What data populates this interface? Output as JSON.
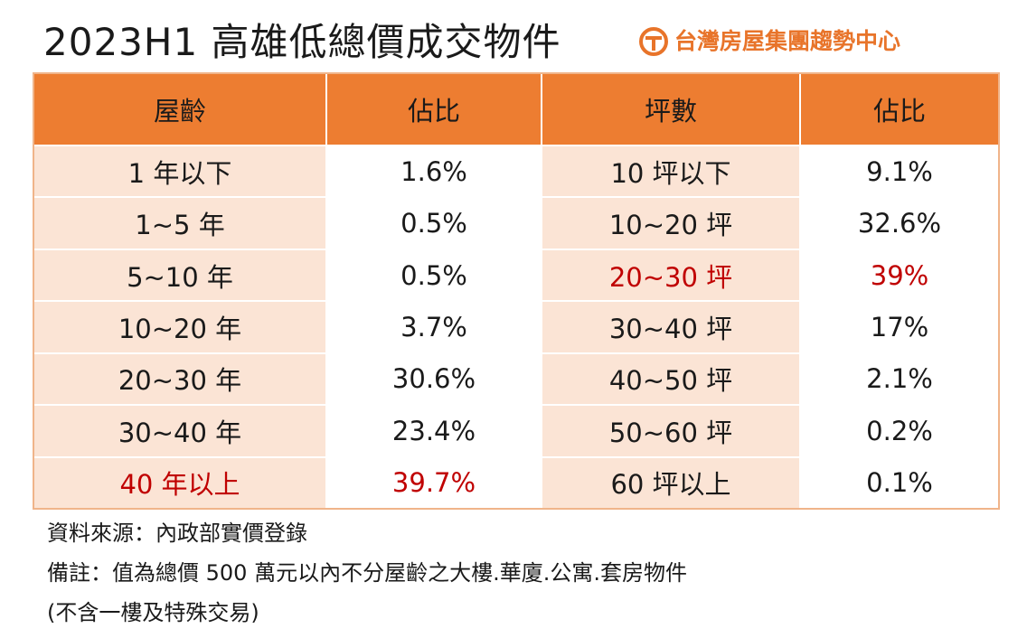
{
  "title": "2023H1 高雄低總價成交物件",
  "brand": {
    "name": "台灣房屋集團趨勢中心",
    "color": "#e8742a",
    "icon": "taiwan-realty-logo-icon"
  },
  "colors": {
    "header": "#ed7d31",
    "shade": "#fbe4d5",
    "highlight": "#c00000"
  },
  "table": {
    "headers": [
      "屋齡",
      "佔比",
      "坪數",
      "佔比"
    ],
    "rows": [
      {
        "age": "1 年以下",
        "age_pct": "1.6%",
        "size": "10 坪以下",
        "size_pct": "9.1%"
      },
      {
        "age": "1~5 年",
        "age_pct": "0.5%",
        "size": "10~20 坪",
        "size_pct": "32.6%"
      },
      {
        "age": "5~10 年",
        "age_pct": "0.5%",
        "size": "20~30 坪",
        "size_pct": "39%"
      },
      {
        "age": "10~20 年",
        "age_pct": "3.7%",
        "size": "30~40 坪",
        "size_pct": "17%"
      },
      {
        "age": "20~30 年",
        "age_pct": "30.6%",
        "size": "40~50 坪",
        "size_pct": "2.1%"
      },
      {
        "age": "30~40 年",
        "age_pct": "23.4%",
        "size": "50~60 坪",
        "size_pct": "0.2%"
      },
      {
        "age": "40 年以上",
        "age_pct": "39.7%",
        "size": "60 坪以上",
        "size_pct": "0.1%"
      }
    ]
  },
  "notes": {
    "source": "資料來源：內政部實價登錄",
    "remark": "備註：值為總價 500 萬元以內不分屋齡之大樓.華廈.公寓.套房物件",
    "remark2": "(不含一樓及特殊交易)"
  }
}
